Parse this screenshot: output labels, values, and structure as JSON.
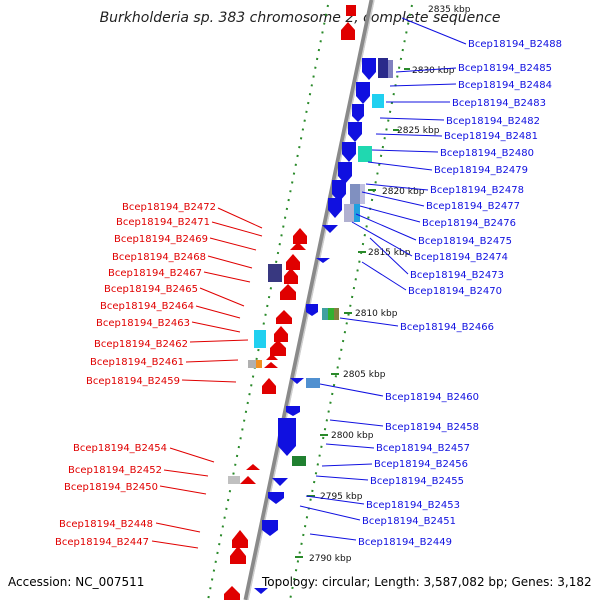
{
  "title": "Burkholderia sp. 383 chromosome 2, complete sequence",
  "accession": "Accession: NC_007511",
  "topology": "Topology: circular; Length: 3,587,082 bp; Genes: 3,182",
  "colors": {
    "forward": "#e00000",
    "reverse": "#1010e0",
    "backbone": "#808080",
    "ticks": "#2a8a2a"
  },
  "scale_labels": [
    "2835 kbp",
    "2830 kbp",
    "2825 kbp",
    "2820 kbp",
    "2815 kbp",
    "2810 kbp",
    "2805 kbp",
    "2800 kbp",
    "2795 kbp",
    "2790 kbp"
  ],
  "right_labels": [
    "Bcep18194_B2488",
    "Bcep18194_B2485",
    "Bcep18194_B2484",
    "Bcep18194_B2483",
    "Bcep18194_B2482",
    "Bcep18194_B2481",
    "Bcep18194_B2480",
    "Bcep18194_B2479",
    "Bcep18194_B2478",
    "Bcep18194_B2477",
    "Bcep18194_B2476",
    "Bcep18194_B2475",
    "Bcep18194_B2474",
    "Bcep18194_B2473",
    "Bcep18194_B2470",
    "Bcep18194_B2466",
    "Bcep18194_B2460",
    "Bcep18194_B2458",
    "Bcep18194_B2457",
    "Bcep18194_B2456",
    "Bcep18194_B2455",
    "Bcep18194_B2453",
    "Bcep18194_B2451",
    "Bcep18194_B2449"
  ],
  "left_labels": [
    "Bcep18194_B2472",
    "Bcep18194_B2471",
    "Bcep18194_B2469",
    "Bcep18194_B2468",
    "Bcep18194_B2467",
    "Bcep18194_B2465",
    "Bcep18194_B2464",
    "Bcep18194_B2463",
    "Bcep18194_B2462",
    "Bcep18194_B2461",
    "Bcep18194_B2459",
    "Bcep18194_B2454",
    "Bcep18194_B2452",
    "Bcep18194_B2450",
    "Bcep18194_B2448",
    "Bcep18194_B2447"
  ]
}
